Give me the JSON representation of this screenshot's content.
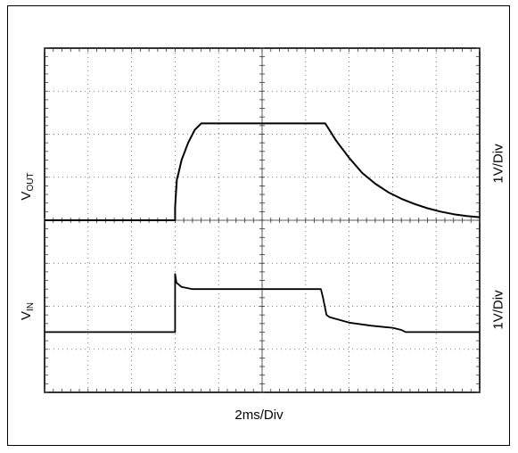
{
  "chart_data": {
    "type": "line",
    "x_unit_label": "2ms/Div",
    "x_divisions": 10,
    "y_divisions": 8,
    "x_range_div": [
      0,
      10
    ],
    "y_range_div": [
      0,
      8
    ],
    "grid": true,
    "center_crosshair_ticks": true,
    "traces": [
      {
        "label_main": "V",
        "label_sub": "OUT",
        "scale": "1V/Div",
        "color": "#000000",
        "points": [
          [
            0,
            4.0
          ],
          [
            3.0,
            4.0
          ],
          [
            3.0,
            4.3
          ],
          [
            3.02,
            4.65
          ],
          [
            3.04,
            4.95
          ],
          [
            3.08,
            5.1
          ],
          [
            3.15,
            5.4
          ],
          [
            3.3,
            5.8
          ],
          [
            3.45,
            6.1
          ],
          [
            3.6,
            6.25
          ],
          [
            3.7,
            6.25
          ],
          [
            6.45,
            6.25
          ],
          [
            6.7,
            5.85
          ],
          [
            7.0,
            5.45
          ],
          [
            7.3,
            5.1
          ],
          [
            7.6,
            4.85
          ],
          [
            7.9,
            4.65
          ],
          [
            8.2,
            4.5
          ],
          [
            8.5,
            4.38
          ],
          [
            8.8,
            4.28
          ],
          [
            9.1,
            4.2
          ],
          [
            9.4,
            4.14
          ],
          [
            9.7,
            4.1
          ],
          [
            10.0,
            4.07
          ]
        ]
      },
      {
        "label_main": "V",
        "label_sub": "IN",
        "scale": "1V/Div",
        "color": "#000000",
        "points": [
          [
            0,
            1.4
          ],
          [
            3.0,
            1.4
          ],
          [
            3.0,
            2.75
          ],
          [
            3.03,
            2.55
          ],
          [
            3.15,
            2.45
          ],
          [
            3.4,
            2.4
          ],
          [
            3.6,
            2.4
          ],
          [
            6.35,
            2.4
          ],
          [
            6.4,
            2.2
          ],
          [
            6.48,
            1.8
          ],
          [
            6.55,
            1.75
          ],
          [
            7.0,
            1.62
          ],
          [
            7.5,
            1.55
          ],
          [
            7.8,
            1.52
          ],
          [
            8.0,
            1.5
          ],
          [
            8.2,
            1.45
          ],
          [
            8.3,
            1.4
          ],
          [
            10.0,
            1.4
          ]
        ]
      }
    ]
  }
}
